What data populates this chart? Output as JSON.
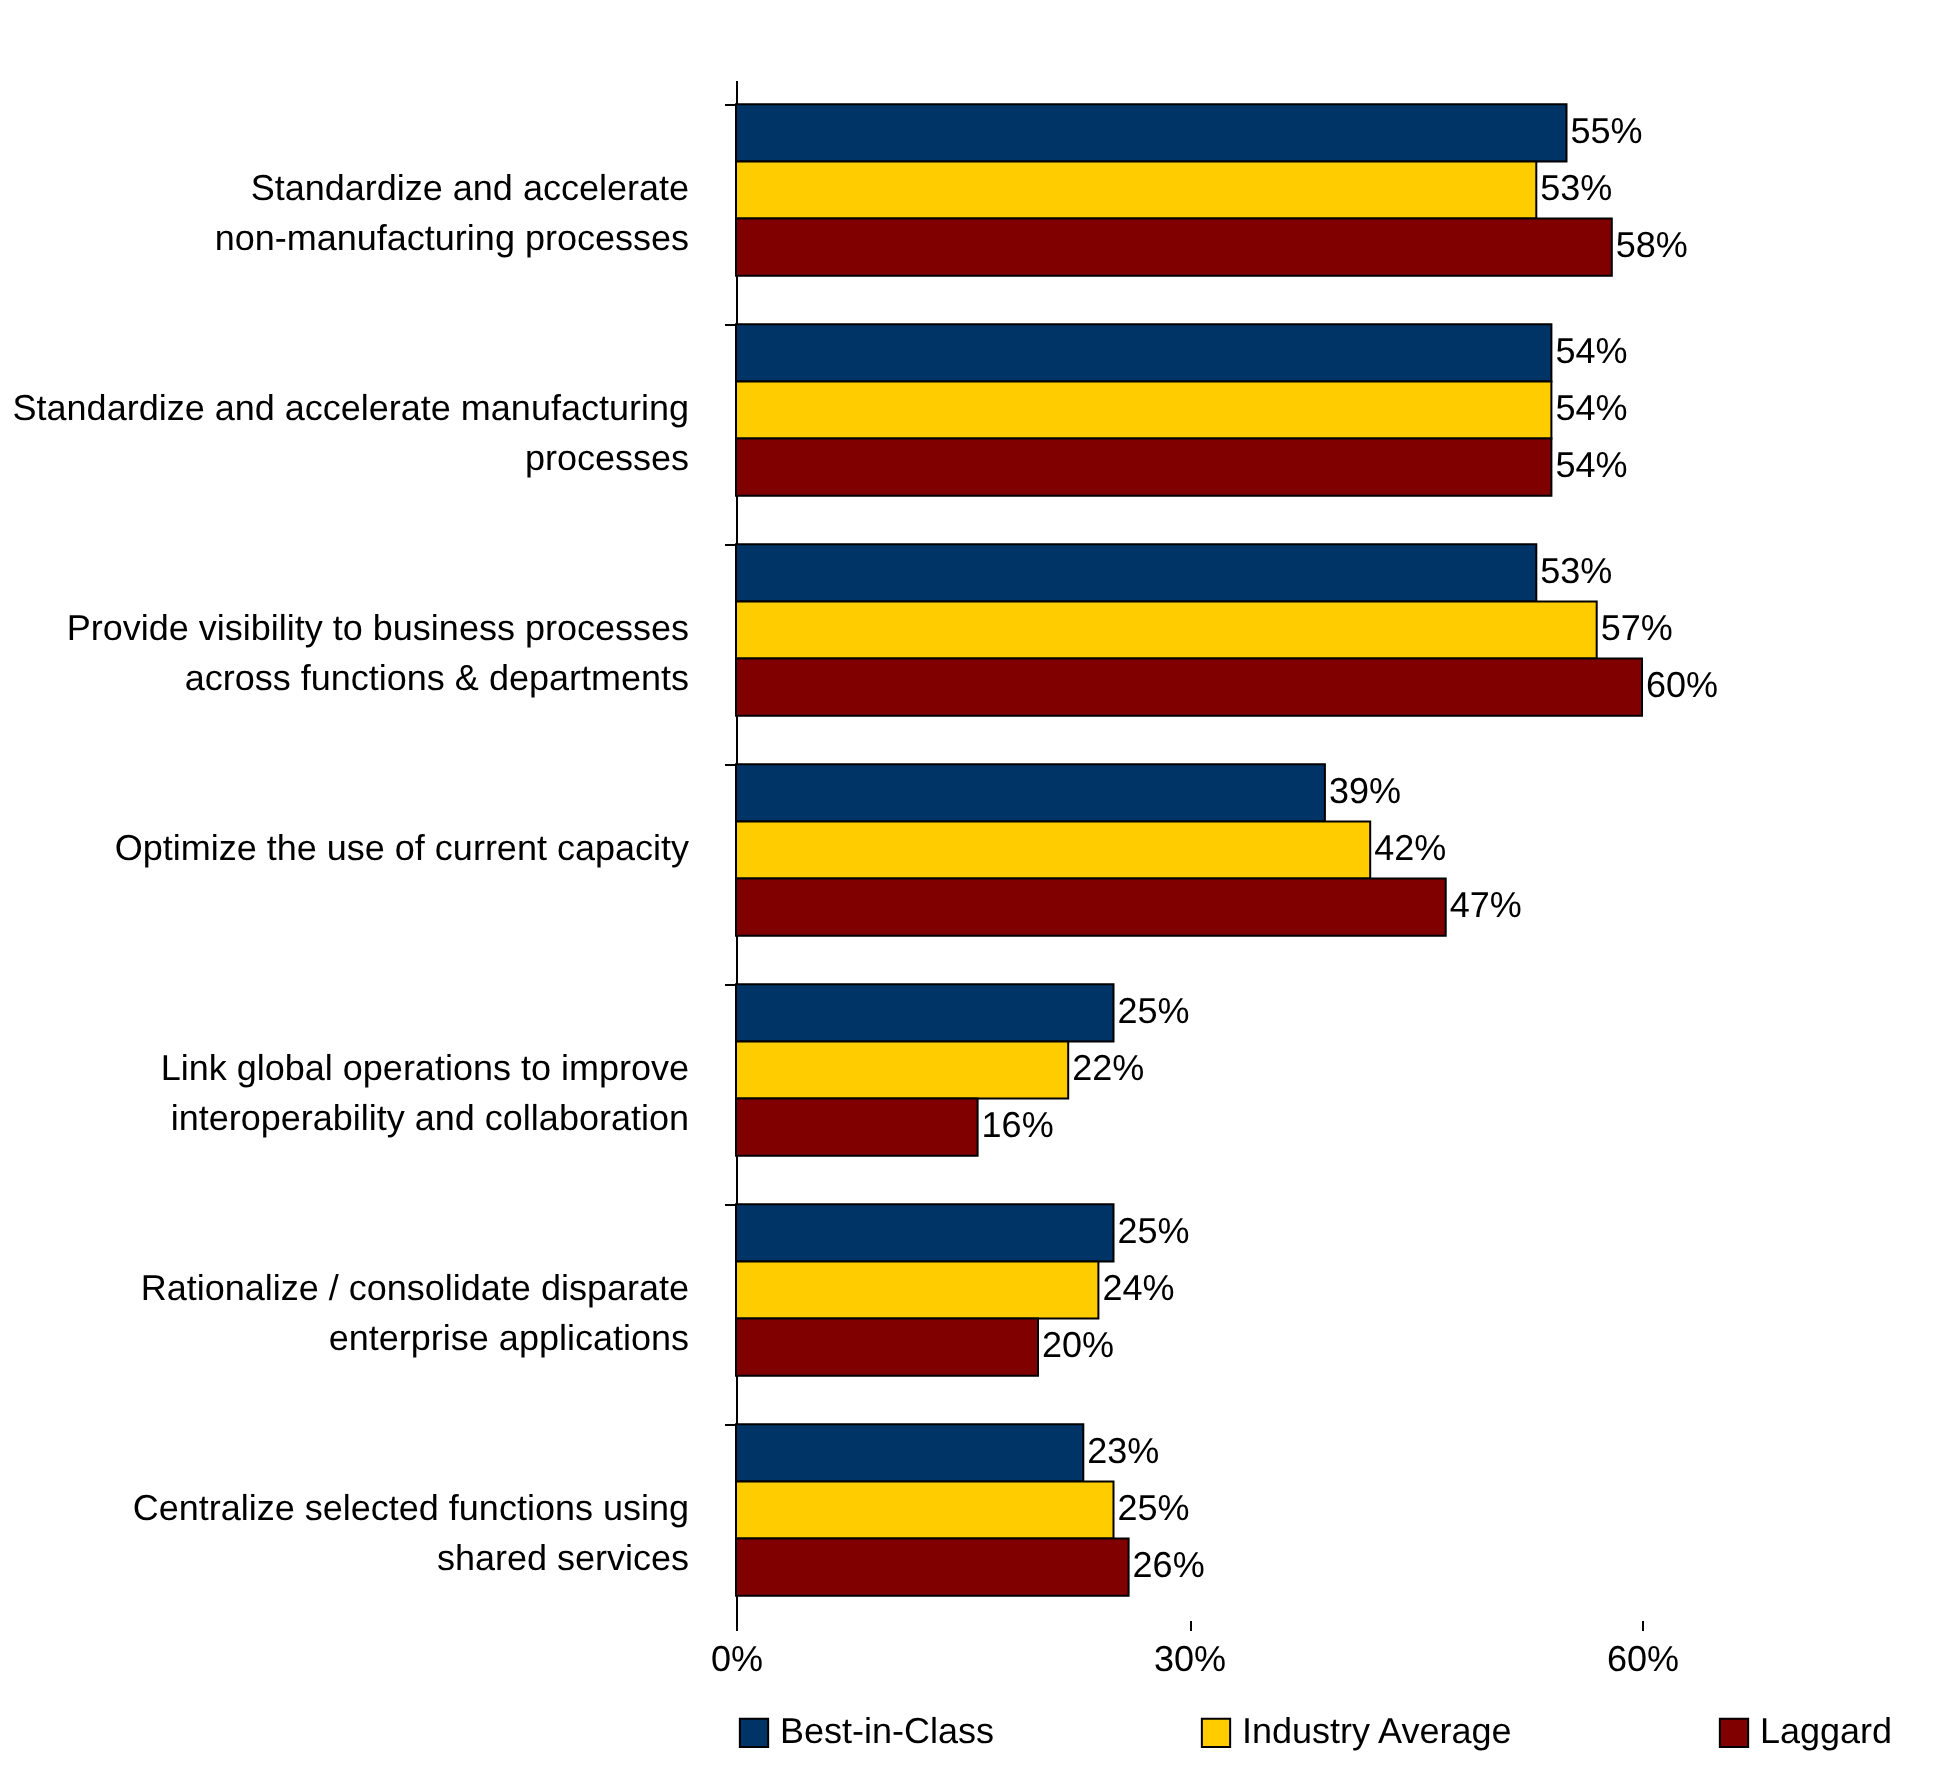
{
  "chart_data": {
    "type": "bar",
    "orientation": "horizontal",
    "categories": [
      "Standardize and accelerate non-manufacturing processes",
      "Standardize and accelerate manufacturing processes",
      "Provide visibility to business processes across functions & departments",
      "Optimize the use of current capacity",
      "Link global operations to improve interoperability and collaboration",
      "Rationalize / consolidate disparate enterprise applications",
      "Centralize selected functions using shared services"
    ],
    "series": [
      {
        "name": "Best-in-Class",
        "color": "#003366",
        "values": [
          55,
          54,
          53,
          39,
          25,
          25,
          23
        ],
        "value_labels": [
          "55%",
          "54%",
          "53%",
          "39%",
          "25%",
          "25%",
          "23%"
        ]
      },
      {
        "name": "Industry Average",
        "color": "#ffcc00",
        "values": [
          53,
          54,
          57,
          42,
          22,
          24,
          25
        ],
        "value_labels": [
          "53%",
          "54%",
          "57%",
          "42%",
          "22%",
          "24%",
          "25%"
        ]
      },
      {
        "name": "Laggard",
        "color": "#800000",
        "values": [
          58,
          54,
          60,
          47,
          16,
          20,
          26
        ],
        "value_labels": [
          "58%",
          "54%",
          "60%",
          "47%",
          "16%",
          "20%",
          "26%"
        ]
      }
    ],
    "xlim": [
      0,
      60
    ],
    "xticks": [
      {
        "value": 0,
        "label": "0%"
      },
      {
        "value": 30,
        "label": "30%"
      },
      {
        "value": 60,
        "label": "60%"
      }
    ],
    "legend": "bottom",
    "grid": false
  }
}
